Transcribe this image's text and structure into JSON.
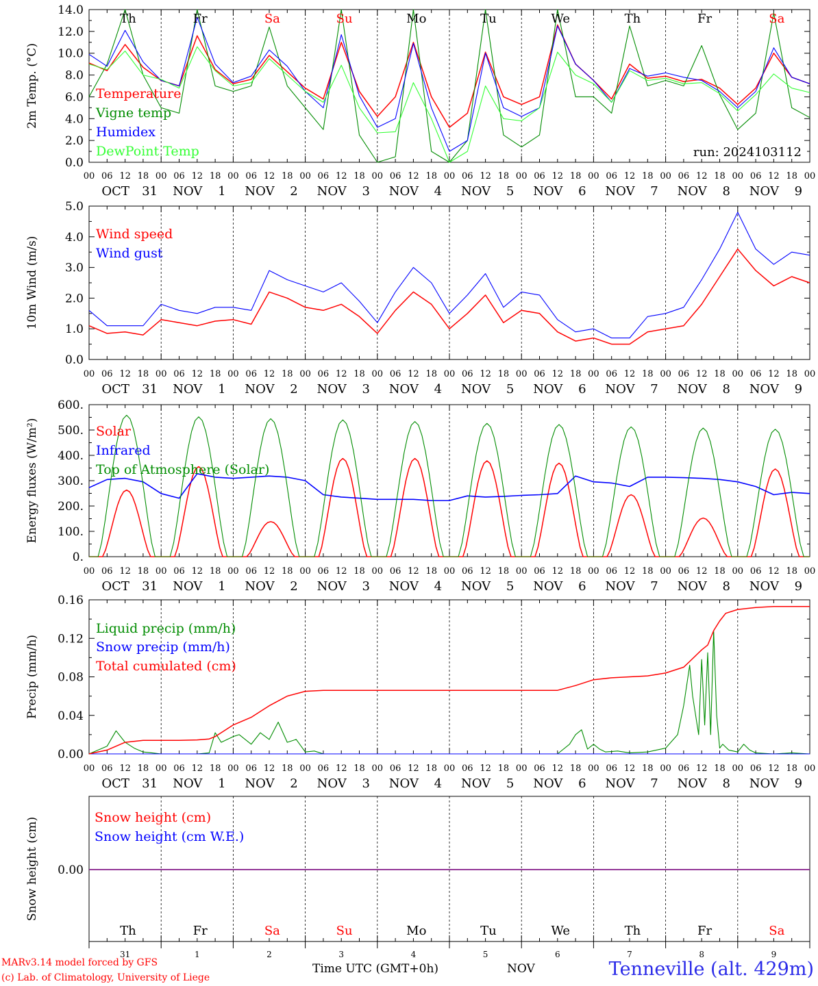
{
  "days": {
    "weekday": [
      "Th",
      "Fr",
      "Sa",
      "Su",
      "Mo",
      "Tu",
      "We",
      "Th",
      "Fr",
      "Sa"
    ],
    "weekday_colors": [
      "#000000",
      "#000000",
      "#ff0000",
      "#ff0000",
      "#000000",
      "#000000",
      "#000000",
      "#000000",
      "#000000",
      "#ff0000"
    ],
    "month": [
      "OCT",
      "NOV",
      "NOV",
      "NOV",
      "NOV",
      "NOV",
      "NOV",
      "NOV",
      "NOV",
      "NOV"
    ],
    "daynum": [
      "31",
      "1",
      "2",
      "3",
      "4",
      "5",
      "6",
      "7",
      "8",
      "9"
    ],
    "hour_ticks": [
      "00",
      "06",
      "12",
      "18"
    ],
    "last_hour": "00"
  },
  "colors": {
    "red": "#ff0000",
    "green": "#008c00",
    "blue": "#0000ff",
    "lightgreen": "#33ff33",
    "purple": "#7020a0"
  },
  "chart_data": [
    {
      "type": "line",
      "ylabel": "2m Temp. (°C)",
      "ylim": [
        0,
        14
      ],
      "yticks": [
        "0.0",
        "2.0",
        "4.0",
        "6.0",
        "8.0",
        "10.0",
        "12.0",
        "14.0"
      ],
      "annotation": "run: 2024103112",
      "x_hours": [
        0,
        6,
        12,
        18,
        24,
        30,
        36,
        42,
        48,
        54,
        60,
        66,
        72,
        78,
        84,
        90,
        96,
        102,
        108,
        114,
        120,
        126,
        132,
        138,
        144,
        150,
        156,
        162,
        168,
        174,
        180,
        186,
        192,
        198,
        204,
        210,
        216,
        222,
        228,
        234,
        240
      ],
      "series": [
        {
          "name": "Temperature",
          "color": "red",
          "values": [
            9.1,
            8.4,
            10.8,
            8.7,
            7.5,
            7.0,
            11.6,
            8.5,
            7.2,
            7.6,
            9.8,
            8.3,
            6.8,
            5.8,
            11.0,
            6.5,
            4.2,
            6.0,
            11.0,
            6.0,
            3.2,
            4.5,
            10.1,
            6.0,
            5.3,
            6.0,
            12.6,
            9.0,
            7.5,
            5.8,
            9.0,
            7.7,
            7.9,
            7.4,
            7.6,
            6.8,
            5.3,
            6.8,
            10.0,
            7.8,
            7.2
          ]
        },
        {
          "name": "Vigne temp",
          "color": "green",
          "values": [
            6.0,
            9.0,
            14.0,
            8.0,
            5.0,
            4.5,
            14.0,
            7.0,
            6.5,
            7.0,
            12.4,
            7.0,
            5.0,
            3.0,
            14.0,
            2.5,
            0.0,
            0.5,
            14.0,
            1.0,
            0.0,
            2.0,
            14.0,
            2.5,
            1.4,
            2.5,
            14.0,
            6.0,
            6.0,
            4.5,
            12.5,
            7.0,
            7.5,
            7.0,
            10.7,
            6.2,
            3.0,
            4.5,
            13.7,
            5.0,
            4.1
          ]
        },
        {
          "name": "Humidex",
          "color": "blue",
          "values": [
            9.9,
            8.8,
            12.1,
            9.2,
            7.5,
            7.0,
            13.3,
            9.0,
            7.3,
            7.9,
            10.3,
            8.8,
            6.5,
            5.0,
            11.7,
            6.1,
            3.2,
            4.0,
            10.9,
            5.0,
            1.0,
            2.0,
            10.0,
            5.0,
            4.2,
            5.0,
            12.5,
            9.0,
            7.5,
            5.5,
            8.6,
            7.9,
            8.2,
            7.8,
            7.5,
            6.5,
            5.0,
            6.5,
            10.5,
            7.8,
            7.2
          ]
        },
        {
          "name": "DewPoint Temp",
          "color": "lightgreen",
          "values": [
            9.0,
            8.5,
            10.2,
            8.0,
            7.6,
            6.8,
            10.6,
            8.4,
            7.0,
            7.3,
            9.5,
            8.0,
            6.5,
            5.5,
            8.9,
            5.0,
            2.7,
            2.8,
            7.3,
            4.0,
            0.0,
            1.0,
            7.0,
            4.0,
            3.8,
            5.0,
            10.1,
            8.0,
            7.2,
            5.5,
            8.4,
            7.5,
            7.7,
            7.2,
            7.3,
            6.3,
            4.7,
            6.2,
            8.1,
            6.8,
            6.4
          ]
        }
      ]
    },
    {
      "type": "line",
      "ylabel": "10m Wind (m/s)",
      "ylim": [
        0,
        5
      ],
      "yticks": [
        "0.0",
        "1.0",
        "2.0",
        "3.0",
        "4.0",
        "5.0"
      ],
      "x_hours": [
        0,
        6,
        12,
        18,
        24,
        30,
        36,
        42,
        48,
        54,
        60,
        66,
        72,
        78,
        84,
        90,
        96,
        102,
        108,
        114,
        120,
        126,
        132,
        138,
        144,
        150,
        156,
        162,
        168,
        174,
        180,
        186,
        192,
        198,
        204,
        210,
        216,
        222,
        228,
        234,
        240
      ],
      "series": [
        {
          "name": "Wind speed",
          "color": "red",
          "values": [
            1.1,
            0.85,
            0.9,
            0.8,
            1.3,
            1.2,
            1.1,
            1.25,
            1.3,
            1.15,
            2.2,
            2.0,
            1.7,
            1.6,
            1.8,
            1.4,
            0.85,
            1.6,
            2.2,
            1.8,
            1.0,
            1.5,
            2.1,
            1.2,
            1.6,
            1.5,
            0.9,
            0.6,
            0.7,
            0.5,
            0.5,
            0.9,
            1.0,
            1.1,
            1.8,
            2.7,
            3.6,
            2.9,
            2.4,
            2.7,
            2.5
          ]
        },
        {
          "name": "Wind gust",
          "color": "blue",
          "values": [
            1.6,
            1.1,
            1.1,
            1.1,
            1.8,
            1.6,
            1.5,
            1.7,
            1.7,
            1.6,
            2.9,
            2.6,
            2.4,
            2.2,
            2.5,
            1.9,
            1.2,
            2.2,
            3.0,
            2.5,
            1.5,
            2.1,
            2.8,
            1.7,
            2.2,
            2.1,
            1.3,
            0.9,
            1.0,
            0.7,
            0.7,
            1.4,
            1.5,
            1.7,
            2.6,
            3.6,
            4.8,
            3.6,
            3.1,
            3.5,
            3.4
          ]
        }
      ]
    },
    {
      "type": "line",
      "ylabel": "Energy fluxes (W/m²)",
      "ylim": [
        0,
        650
      ],
      "yticks": [
        "0.",
        "100.",
        "200.",
        "300.",
        "400.",
        "500.",
        "600."
      ],
      "series": [
        {
          "name": "Solar",
          "color": "red",
          "daily_peaks": [
            285,
            385,
            150,
            420,
            420,
            410,
            400,
            265,
            165,
            375
          ]
        },
        {
          "name": "Infrared",
          "color": "blue",
          "x_hours": [
            0,
            6,
            12,
            18,
            24,
            30,
            36,
            42,
            48,
            54,
            60,
            66,
            72,
            78,
            84,
            90,
            96,
            102,
            108,
            114,
            120,
            126,
            132,
            138,
            144,
            150,
            156,
            162,
            168,
            174,
            180,
            186,
            192,
            198,
            204,
            210,
            216,
            222,
            228,
            234,
            240
          ],
          "values": [
            295,
            330,
            335,
            320,
            270,
            250,
            355,
            340,
            335,
            340,
            345,
            340,
            325,
            265,
            255,
            250,
            245,
            245,
            245,
            240,
            240,
            260,
            255,
            258,
            262,
            265,
            270,
            345,
            320,
            315,
            300,
            340,
            340,
            338,
            335,
            330,
            320,
            300,
            265,
            275,
            270
          ]
        },
        {
          "name": "Top of Atmosphere (Solar)",
          "color": "green",
          "daily_peaks": [
            605,
            598,
            590,
            585,
            578,
            570,
            565,
            555,
            550,
            545
          ]
        }
      ]
    },
    {
      "type": "line",
      "ylabel": "Precip (mm/h)",
      "ylim": [
        0,
        0.16
      ],
      "yticks": [
        "0.00",
        "0.04",
        "0.08",
        "0.12",
        "0.16"
      ],
      "series": [
        {
          "name": "Liquid precip (mm/h)",
          "color": "green",
          "x_hours": [
            0,
            3,
            6,
            9,
            12,
            15,
            18,
            21,
            24,
            30,
            36,
            40,
            42,
            44,
            48,
            50,
            54,
            57,
            60,
            63,
            66,
            69,
            72,
            75,
            78,
            84,
            90,
            96,
            102,
            108,
            114,
            120,
            126,
            132,
            138,
            144,
            150,
            156,
            160,
            162,
            164,
            166,
            168,
            170,
            172,
            176,
            180,
            186,
            192,
            196,
            198,
            200,
            201,
            203,
            204,
            205,
            206,
            207,
            208,
            209,
            210,
            211,
            213,
            216,
            218,
            220,
            222,
            228,
            234,
            240
          ],
          "values": [
            0,
            0.004,
            0.008,
            0.024,
            0.012,
            0.006,
            0.002,
            0.001,
            0,
            0,
            0,
            0.001,
            0.022,
            0.012,
            0.018,
            0.02,
            0.01,
            0.022,
            0.015,
            0.033,
            0.012,
            0.015,
            0.002,
            0.003,
            0.0,
            0,
            0,
            0,
            0,
            0,
            0,
            0,
            0,
            0,
            0,
            0,
            0,
            0,
            0.01,
            0.02,
            0.025,
            0.005,
            0.01,
            0.005,
            0.002,
            0.003,
            0.001,
            0.002,
            0.006,
            0.02,
            0.05,
            0.092,
            0.06,
            0.02,
            0.098,
            0.03,
            0.105,
            0.02,
            0.128,
            0.04,
            0.006,
            0.01,
            0.004,
            0.002,
            0.01,
            0.004,
            0.001,
            0,
            0.001,
            0
          ]
        },
        {
          "name": "Snow precip (mm/h)",
          "color": "blue",
          "x_hours": [
            0,
            240
          ],
          "values": [
            0,
            0
          ]
        },
        {
          "name": "Total cumulated (cm)",
          "color": "red",
          "x_hours": [
            0,
            6,
            12,
            18,
            24,
            30,
            36,
            40,
            42,
            48,
            54,
            60,
            66,
            72,
            78,
            84,
            96,
            120,
            144,
            156,
            162,
            168,
            174,
            180,
            186,
            192,
            198,
            200,
            204,
            206,
            208,
            210,
            212,
            216,
            222,
            228,
            240
          ],
          "values": [
            0,
            0.004,
            0.012,
            0.014,
            0.014,
            0.014,
            0.0145,
            0.0155,
            0.018,
            0.03,
            0.038,
            0.05,
            0.06,
            0.065,
            0.066,
            0.066,
            0.066,
            0.066,
            0.066,
            0.066,
            0.071,
            0.077,
            0.079,
            0.08,
            0.081,
            0.084,
            0.09,
            0.096,
            0.108,
            0.113,
            0.128,
            0.138,
            0.146,
            0.15,
            0.152,
            0.153,
            0.153
          ]
        }
      ]
    },
    {
      "type": "line",
      "ylabel": "Snow height (cm)",
      "yticks": [
        "0.00"
      ],
      "series": [
        {
          "name": "Snow height (cm)",
          "color": "red",
          "x_hours": [
            0,
            240
          ],
          "values": [
            0,
            0
          ]
        },
        {
          "name": "Snow height (cm W.E.)",
          "color": "blue",
          "x_hours": [
            0,
            240
          ],
          "values": [
            0,
            0
          ]
        }
      ]
    }
  ],
  "footer": {
    "model_line1": "MARv3.14 model forced by GFS",
    "model_line2": "(c) Lab. of Climatology, University of Liege",
    "time_label": "Time UTC (GMT+0h)",
    "month_label": "NOV",
    "station": "Tenneville (alt. 429m)"
  }
}
